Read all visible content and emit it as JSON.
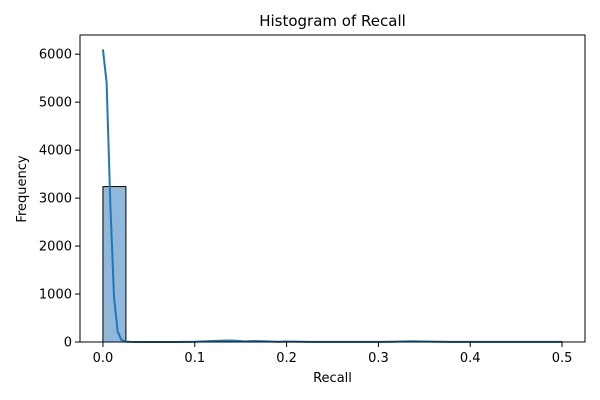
{
  "chart_data": {
    "type": "bar",
    "title": "Histogram of Recall",
    "xlabel": "Recall",
    "ylabel": "Frequency",
    "xlim": [
      -0.025,
      0.525
    ],
    "ylim": [
      0,
      6400
    ],
    "x_ticks": [
      0.0,
      0.1,
      0.2,
      0.3,
      0.4,
      0.5
    ],
    "x_tick_labels": [
      "0.0",
      "0.1",
      "0.2",
      "0.3",
      "0.4",
      "0.5"
    ],
    "y_ticks": [
      0,
      1000,
      2000,
      3000,
      4000,
      5000,
      6000
    ],
    "y_tick_labels": [
      "0",
      "1000",
      "2000",
      "3000",
      "4000",
      "5000",
      "6000"
    ],
    "bins": [
      {
        "start": 0.0,
        "end": 0.025,
        "count": 3240
      },
      {
        "start": 0.025,
        "end": 0.05,
        "count": 0
      },
      {
        "start": 0.05,
        "end": 0.075,
        "count": 0
      },
      {
        "start": 0.075,
        "end": 0.1,
        "count": 0
      },
      {
        "start": 0.1,
        "end": 0.125,
        "count": 4
      },
      {
        "start": 0.125,
        "end": 0.15,
        "count": 14
      },
      {
        "start": 0.15,
        "end": 0.175,
        "count": 10
      },
      {
        "start": 0.175,
        "end": 0.2,
        "count": 2
      },
      {
        "start": 0.2,
        "end": 0.225,
        "count": 6
      },
      {
        "start": 0.225,
        "end": 0.25,
        "count": 2
      },
      {
        "start": 0.25,
        "end": 0.275,
        "count": 0
      },
      {
        "start": 0.275,
        "end": 0.3,
        "count": 0
      },
      {
        "start": 0.3,
        "end": 0.325,
        "count": 2
      },
      {
        "start": 0.325,
        "end": 0.35,
        "count": 8
      },
      {
        "start": 0.35,
        "end": 0.375,
        "count": 2
      },
      {
        "start": 0.375,
        "end": 0.4,
        "count": 0
      },
      {
        "start": 0.4,
        "end": 0.425,
        "count": 0
      },
      {
        "start": 0.425,
        "end": 0.45,
        "count": 0
      },
      {
        "start": 0.45,
        "end": 0.475,
        "count": 0
      },
      {
        "start": 0.475,
        "end": 0.5,
        "count": 2
      }
    ],
    "kde": {
      "x": [
        0.0,
        0.004,
        0.008,
        0.012,
        0.016,
        0.02,
        0.025,
        0.03,
        0.04,
        0.06,
        0.08,
        0.1,
        0.12,
        0.135,
        0.145,
        0.155,
        0.165,
        0.175,
        0.19,
        0.2,
        0.21,
        0.225,
        0.25,
        0.3,
        0.32,
        0.335,
        0.35,
        0.38,
        0.45,
        0.5
      ],
      "y": [
        6100,
        5400,
        2900,
        950,
        220,
        45,
        8,
        2,
        0,
        0,
        0,
        5,
        20,
        32,
        25,
        12,
        22,
        15,
        5,
        10,
        8,
        3,
        2,
        2,
        8,
        15,
        10,
        3,
        2,
        3
      ]
    },
    "bar_color": "#8fb8da",
    "bar_edge_color": "#000000",
    "line_color": "#1f77b4",
    "grid": false,
    "legend": "none"
  }
}
